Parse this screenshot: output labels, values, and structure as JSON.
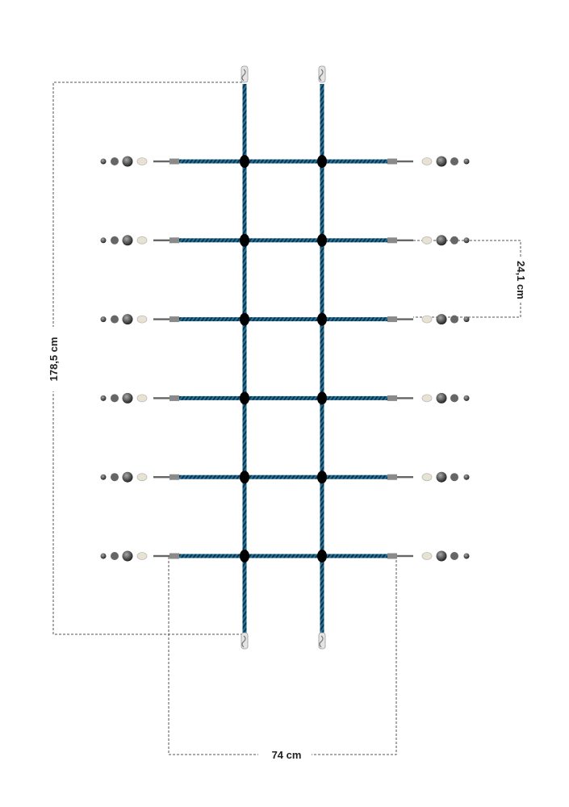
{
  "dimensions": {
    "height_label": "178,5 cm",
    "rung_spacing_label": "24,1 cm",
    "width_label": "74 cm"
  },
  "rung_count": 6,
  "colors": {
    "rope": "#1f6f9a",
    "rope_stripe": "#0b2a3a",
    "knot": "#000000",
    "sleeve": "#8a8a8a",
    "rod": "#666666",
    "washer": "#e8e2d2",
    "dimension_line": "#555555"
  }
}
